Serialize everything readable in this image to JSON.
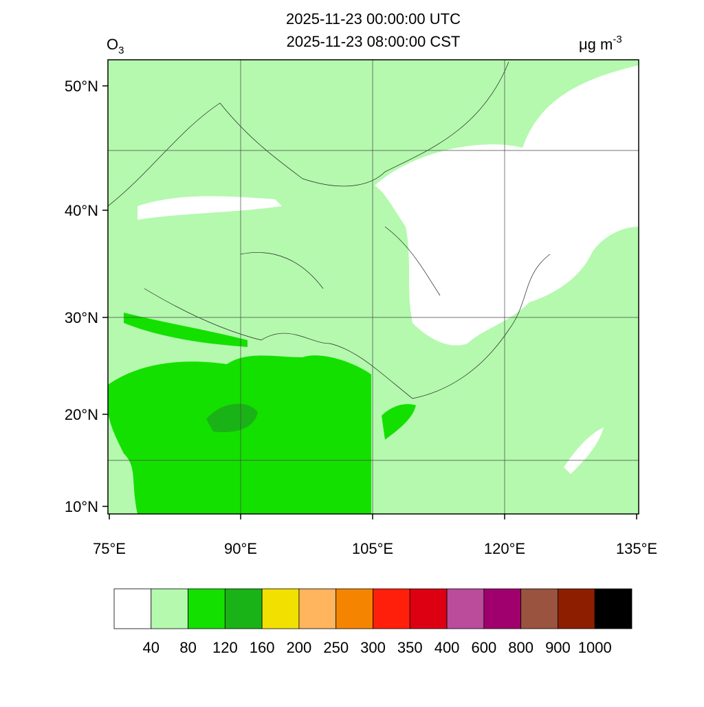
{
  "title": {
    "line1": "2025-11-23 00:00:00 UTC",
    "line2": "2025-11-23 08:00:00 CST"
  },
  "variable": {
    "base": "O",
    "sub": "3"
  },
  "units": {
    "base": "μg m",
    "sup": "-3"
  },
  "lat_labels": [
    "50°N",
    "40°N",
    "30°N",
    "20°N",
    "10°N"
  ],
  "lon_labels": [
    "75°E",
    "90°E",
    "105°E",
    "120°E",
    "135°E"
  ],
  "colorbar": {
    "colors": [
      "#ffffff",
      "#b4f9ae",
      "#14e000",
      "#1ab317",
      "#f2e100",
      "#ffb45e",
      "#f58500",
      "#ff1f0a",
      "#dc0012",
      "#ba4c9b",
      "#a0006e",
      "#9a533f",
      "#8d1f00",
      "#000000"
    ],
    "levels": [
      40,
      80,
      120,
      160,
      200,
      250,
      300,
      350,
      400,
      600,
      800,
      900,
      1000
    ]
  }
}
